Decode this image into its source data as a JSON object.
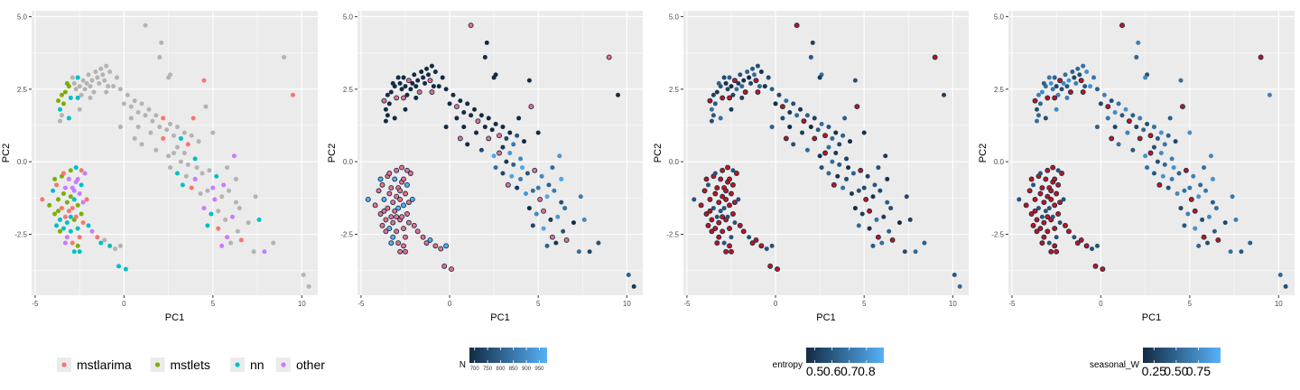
{
  "colors": {
    "panel_bg": "#ebebeb",
    "grid": "#ffffff",
    "mstlarima": "#f8766d",
    "mstlets": "#7cae00",
    "nn": "#00bfc4",
    "other": "#c77cff",
    "grey": "#b3b3b3",
    "navy": "#132b43",
    "lightblue": "#56b1f7",
    "red": "#c0141f",
    "pink": "#e8708f"
  },
  "chart_data": [
    {
      "type": "scatter",
      "xlabel": "PC1",
      "ylabel": "PC2",
      "xlim": [
        -5.2,
        10.9
      ],
      "ylim": [
        -4.6,
        5.2
      ],
      "xticks": [
        -5,
        0,
        5,
        10
      ],
      "yticks": [
        -2.5,
        0.0,
        2.5,
        5.0
      ],
      "ytick_labels": [
        "-2.5",
        "0.0",
        "2.5",
        "5.0"
      ],
      "legend": {
        "type": "discrete",
        "position": "bottom",
        "entries": [
          {
            "label": "mstlarima",
            "color": "#f8766d"
          },
          {
            "label": "mstlets",
            "color": "#7cae00"
          },
          {
            "label": "nn",
            "color": "#00bfc4"
          },
          {
            "label": "other",
            "color": "#c77cff"
          }
        ]
      }
    },
    {
      "type": "scatter",
      "xlabel": "PC1",
      "ylabel": "PC2",
      "xlim": [
        -5.2,
        10.9
      ],
      "ylim": [
        -4.6,
        5.2
      ],
      "xticks": [
        -5,
        0,
        5,
        10
      ],
      "yticks": [
        -2.5,
        0.0,
        2.5,
        5.0
      ],
      "ytick_labels": [
        "-2.5",
        "0.0",
        "2.5",
        "5.0"
      ],
      "legend": {
        "type": "colorbar",
        "position": "bottom",
        "title": "N",
        "labels": [
          "700",
          "750",
          "800",
          "850",
          "900",
          "950"
        ]
      }
    },
    {
      "type": "scatter",
      "xlabel": "PC1",
      "ylabel": "PC2",
      "xlim": [
        -5.2,
        10.9
      ],
      "ylim": [
        -4.6,
        5.2
      ],
      "xticks": [
        -5,
        0,
        5,
        10
      ],
      "yticks": [
        -2.5,
        0.0,
        2.5,
        5.0
      ],
      "ytick_labels": [
        "-2.5",
        "0.0",
        "2.5",
        "5.0"
      ],
      "legend": {
        "type": "colorbar",
        "position": "bottom",
        "title": "entropy",
        "labels": [
          "0.5",
          "0.6",
          "0.7",
          "0.8"
        ]
      }
    },
    {
      "type": "scatter",
      "xlabel": "PC1",
      "ylabel": "PC2",
      "xlim": [
        -5.2,
        10.9
      ],
      "ylim": [
        -4.6,
        5.2
      ],
      "xticks": [
        -5,
        0,
        5,
        10
      ],
      "yticks": [
        -2.5,
        0.0,
        2.5,
        5.0
      ],
      "ytick_labels": [
        "-2.5",
        "0.0",
        "2.5",
        "5.0"
      ],
      "legend": {
        "type": "colorbar",
        "position": "bottom",
        "title": "seasonal_W",
        "labels": [
          "0.25",
          "0.50",
          "0.75"
        ]
      }
    }
  ],
  "points": {
    "upper_cluster": [
      [
        -3.7,
        2.1
      ],
      [
        -3.5,
        2.3
      ],
      [
        -3.4,
        2.0
      ],
      [
        -3.6,
        1.8
      ],
      [
        -3.3,
        2.4
      ],
      [
        -3.1,
        2.6
      ],
      [
        -3.0,
        2.2
      ],
      [
        -2.8,
        2.7
      ],
      [
        -2.7,
        2.5
      ],
      [
        -2.6,
        2.9
      ],
      [
        -2.5,
        2.6
      ],
      [
        -2.4,
        2.3
      ],
      [
        -2.3,
        2.8
      ],
      [
        -2.2,
        2.5
      ],
      [
        -2.1,
        2.7
      ],
      [
        -2.0,
        3.0
      ],
      [
        -1.9,
        2.6
      ],
      [
        -1.8,
        2.8
      ],
      [
        -1.7,
        2.4
      ],
      [
        -1.6,
        3.1
      ],
      [
        -1.5,
        2.9
      ],
      [
        -1.4,
        2.7
      ],
      [
        -1.3,
        3.2
      ],
      [
        -1.2,
        3.0
      ],
      [
        -1.1,
        2.8
      ],
      [
        -1.0,
        3.3
      ],
      [
        -0.9,
        2.6
      ],
      [
        -0.8,
        3.1
      ],
      [
        -2.9,
        2.9
      ],
      [
        -3.2,
        2.7
      ],
      [
        -2.6,
        2.2
      ],
      [
        -1.9,
        2.2
      ],
      [
        -3.5,
        1.6
      ],
      [
        -3.1,
        1.5
      ],
      [
        -2.5,
        1.8
      ],
      [
        -3.6,
        1.4
      ],
      [
        -1.0,
        2.4
      ],
      [
        -0.6,
        2.6
      ],
      [
        -0.4,
        2.9
      ],
      [
        -0.2,
        2.5
      ],
      [
        0.0,
        2.0
      ],
      [
        0.2,
        2.3
      ],
      [
        0.4,
        1.9
      ],
      [
        0.6,
        2.1
      ],
      [
        0.8,
        1.7
      ],
      [
        1.0,
        2.0
      ],
      [
        1.2,
        1.6
      ],
      [
        1.4,
        1.8
      ],
      [
        1.6,
        1.4
      ],
      [
        1.8,
        1.6
      ],
      [
        2.0,
        1.2
      ],
      [
        2.2,
        1.5
      ],
      [
        2.4,
        1.1
      ],
      [
        2.6,
        1.3
      ],
      [
        2.8,
        0.9
      ],
      [
        3.0,
        1.2
      ],
      [
        3.2,
        0.8
      ],
      [
        3.4,
        1.0
      ],
      [
        3.6,
        0.6
      ],
      [
        3.8,
        0.9
      ],
      [
        1.2,
        4.7
      ],
      [
        2.1,
        4.1
      ],
      [
        2.0,
        3.6
      ],
      [
        2.6,
        3.0
      ],
      [
        2.5,
        2.9
      ],
      [
        4.5,
        2.8
      ],
      [
        4.6,
        1.9
      ],
      [
        5.0,
        1.0
      ],
      [
        0.4,
        1.5
      ],
      [
        -0.2,
        1.2
      ],
      [
        0.8,
        1.2
      ],
      [
        1.5,
        1.0
      ],
      [
        2.2,
        0.8
      ],
      [
        3.0,
        0.5
      ],
      [
        3.4,
        0.3
      ],
      [
        1.0,
        0.6
      ],
      [
        1.8,
        0.4
      ],
      [
        2.5,
        0.2
      ],
      [
        0.6,
        0.8
      ],
      [
        3.9,
        1.5
      ],
      [
        4.2,
        0.7
      ],
      [
        4.0,
        0.1
      ],
      [
        3.6,
        -0.1
      ],
      [
        3.2,
        0.0
      ],
      [
        2.8,
        0.3
      ],
      [
        2.6,
        -0.2
      ],
      [
        3.0,
        -0.4
      ],
      [
        3.5,
        -0.5
      ],
      [
        4.0,
        -0.6
      ],
      [
        4.4,
        -0.4
      ],
      [
        4.8,
        -0.3
      ],
      [
        5.2,
        -0.5
      ],
      [
        5.6,
        -0.8
      ],
      [
        3.8,
        -0.9
      ],
      [
        4.3,
        -1.1
      ],
      [
        4.7,
        -1.0
      ],
      [
        5.1,
        -1.3
      ],
      [
        5.5,
        -1.2
      ],
      [
        5.9,
        -1.0
      ],
      [
        6.3,
        -1.4
      ],
      [
        4.5,
        -1.6
      ],
      [
        4.9,
        -1.8
      ],
      [
        5.3,
        -1.7
      ],
      [
        5.7,
        -2.0
      ],
      [
        6.1,
        -1.9
      ],
      [
        6.5,
        -1.6
      ],
      [
        4.7,
        -2.2
      ],
      [
        5.3,
        -2.3
      ],
      [
        5.8,
        -2.6
      ],
      [
        6.4,
        -2.4
      ],
      [
        7.0,
        -2.1
      ],
      [
        7.6,
        -2.0
      ],
      [
        5.5,
        -2.9
      ],
      [
        6.0,
        -2.8
      ],
      [
        6.6,
        -2.7
      ],
      [
        7.3,
        -3.1
      ],
      [
        7.9,
        -3.1
      ],
      [
        6.3,
        -0.6
      ],
      [
        7.4,
        -1.2
      ],
      [
        8.4,
        -2.8
      ],
      [
        9.0,
        3.6
      ],
      [
        9.5,
        2.3
      ],
      [
        10.1,
        -3.9
      ],
      [
        10.4,
        -4.3
      ],
      [
        6.2,
        0.2
      ],
      [
        5.8,
        -0.2
      ],
      [
        3.3,
        -0.8
      ],
      [
        4.1,
        -0.2
      ],
      [
        5.0,
        -0.9
      ]
    ],
    "lower_cluster": [
      [
        -4.6,
        -1.3
      ],
      [
        -4.2,
        -1.5
      ],
      [
        -4.0,
        -1.0
      ],
      [
        -3.9,
        -1.8
      ],
      [
        -3.8,
        -0.8
      ],
      [
        -3.7,
        -1.3
      ],
      [
        -3.6,
        -2.0
      ],
      [
        -3.5,
        -0.5
      ],
      [
        -3.5,
        -1.6
      ],
      [
        -3.4,
        -1.1
      ],
      [
        -3.4,
        -2.3
      ],
      [
        -3.3,
        -0.9
      ],
      [
        -3.3,
        -1.9
      ],
      [
        -3.2,
        -1.4
      ],
      [
        -3.2,
        -2.1
      ],
      [
        -3.1,
        -0.6
      ],
      [
        -3.1,
        -1.7
      ],
      [
        -3.0,
        -1.2
      ],
      [
        -3.0,
        -2.4
      ],
      [
        -2.9,
        -0.9
      ],
      [
        -2.9,
        -1.6
      ],
      [
        -2.8,
        -2.0
      ],
      [
        -2.8,
        -1.3
      ],
      [
        -2.7,
        -0.7
      ],
      [
        -2.7,
        -1.9
      ],
      [
        -2.6,
        -1.5
      ],
      [
        -2.6,
        -2.3
      ],
      [
        -2.5,
        -1.1
      ],
      [
        -2.5,
        -2.6
      ],
      [
        -2.4,
        -1.8
      ],
      [
        -2.4,
        -0.8
      ],
      [
        -2.3,
        -1.4
      ],
      [
        -2.3,
        -2.1
      ],
      [
        -3.6,
        -2.4
      ],
      [
        -3.8,
        -2.2
      ],
      [
        -3.2,
        -2.6
      ],
      [
        -2.9,
        -2.8
      ],
      [
        -2.6,
        -2.9
      ],
      [
        -2.5,
        -3.1
      ],
      [
        -2.2,
        -0.4
      ],
      [
        -2.1,
        -1.3
      ],
      [
        -3.0,
        -0.3
      ],
      [
        -2.7,
        -0.2
      ],
      [
        -2.6,
        -0.6
      ],
      [
        -3.4,
        -0.4
      ],
      [
        -3.9,
        -0.6
      ],
      [
        -2.0,
        -2.2
      ],
      [
        -1.8,
        -2.4
      ],
      [
        -1.5,
        -2.6
      ],
      [
        -1.3,
        -2.8
      ],
      [
        -1.1,
        -2.7
      ],
      [
        -0.8,
        -2.9
      ],
      [
        -0.5,
        -3.0
      ],
      [
        -0.3,
        -3.6
      ],
      [
        -2.8,
        -3.1
      ],
      [
        -3.3,
        -2.8
      ],
      [
        -2.4,
        -0.3
      ],
      [
        -3.7,
        -1.7
      ],
      [
        -3.0,
        -1.9
      ],
      [
        -2.8,
        -1.0
      ],
      [
        -0.2,
        -2.9
      ],
      [
        0.1,
        -3.7
      ]
    ]
  }
}
